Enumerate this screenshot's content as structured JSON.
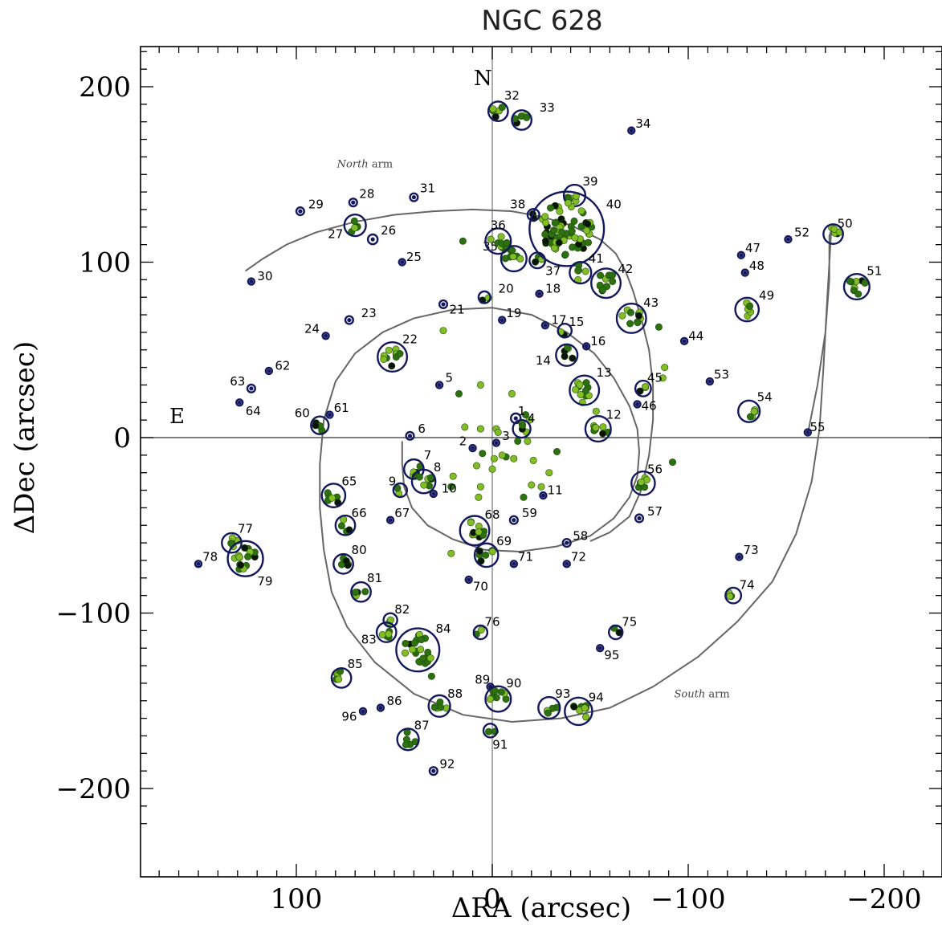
{
  "chart_data": {
    "type": "scatter",
    "title": "NGC 628",
    "xlabel": "ΔRA  (arcsec)",
    "ylabel": "ΔDec  (arcsec)",
    "xlim": [
      -228,
      178
    ],
    "ylim": [
      -230,
      223
    ],
    "x_reversed": true,
    "xticks": [
      100,
      0,
      -100,
      -200
    ],
    "xtick_labels": [
      "100",
      "0",
      "−100",
      "−200"
    ],
    "yticks": [
      200,
      100,
      0,
      -100,
      -200
    ],
    "ytick_labels": [
      "200",
      "100",
      "0",
      "−100",
      "−200"
    ],
    "compass": {
      "north": "N",
      "east": "E"
    },
    "arm_labels": [
      {
        "italic": "North",
        "rest": " arm",
        "x": 65,
        "y": 154
      },
      {
        "italic": "South",
        "rest": " arm",
        "x": -107,
        "y": -148
      }
    ],
    "colors": {
      "circle": "#14195e",
      "dark_green": "#2c7010",
      "light_green": "#82bd26",
      "curve": "#666666",
      "dark_spot": "#0a1408"
    },
    "regions": [
      {
        "id": "1",
        "x": -12,
        "y": 11,
        "r": 2.5,
        "lx": -15,
        "ly": 15
      },
      {
        "id": "2",
        "x": 10,
        "y": -6,
        "r": 1.5,
        "lx": 15,
        "ly": -2
      },
      {
        "id": "3",
        "x": -2,
        "y": -3,
        "r": 1.5,
        "lx": -7,
        "ly": 1
      },
      {
        "id": "4",
        "x": -15,
        "y": 5,
        "r": 4.5,
        "lx": -20,
        "ly": 11
      },
      {
        "id": "5",
        "x": 27,
        "y": 30,
        "r": 1.5,
        "lx": 22,
        "ly": 34
      },
      {
        "id": "6",
        "x": 42,
        "y": 1,
        "r": 2,
        "lx": 36,
        "ly": 5
      },
      {
        "id": "7",
        "x": 40,
        "y": -18,
        "r": 5,
        "lx": 33,
        "ly": -10
      },
      {
        "id": "8",
        "x": 35,
        "y": -25,
        "r": 6,
        "lx": 28,
        "ly": -17
      },
      {
        "id": "9",
        "x": 47,
        "y": -30,
        "r": 3.5,
        "lx": 51,
        "ly": -25
      },
      {
        "id": "10",
        "x": 30,
        "y": -32,
        "r": 1.5,
        "lx": 22,
        "ly": -29
      },
      {
        "id": "11",
        "x": -26,
        "y": -33,
        "r": 1.5,
        "lx": -32,
        "ly": -30
      },
      {
        "id": "12",
        "x": -54,
        "y": 5,
        "r": 6.5,
        "lx": -62,
        "ly": 13
      },
      {
        "id": "13",
        "x": -47,
        "y": 27,
        "r": 7.5,
        "lx": -57,
        "ly": 37
      },
      {
        "id": "14",
        "x": -38,
        "y": 47,
        "r": 5.5,
        "lx": -26,
        "ly": 44
      },
      {
        "id": "15",
        "x": -37,
        "y": 61,
        "r": 3.5,
        "lx": -43,
        "ly": 66
      },
      {
        "id": "16",
        "x": -48,
        "y": 52,
        "r": 1.5,
        "lx": -54,
        "ly": 55
      },
      {
        "id": "17",
        "x": -27,
        "y": 64,
        "r": 1.5,
        "lx": -34,
        "ly": 67
      },
      {
        "id": "18",
        "x": -24,
        "y": 82,
        "r": 1.5,
        "lx": -31,
        "ly": 85
      },
      {
        "id": "19",
        "x": -5,
        "y": 67,
        "r": 1.5,
        "lx": -11,
        "ly": 71
      },
      {
        "id": "20",
        "x": 4,
        "y": 80,
        "r": 3,
        "lx": -7,
        "ly": 85
      },
      {
        "id": "21",
        "x": 25,
        "y": 76,
        "r": 2,
        "lx": 18,
        "ly": 73
      },
      {
        "id": "22",
        "x": 51,
        "y": 46,
        "r": 7.5,
        "lx": 42,
        "ly": 56
      },
      {
        "id": "23",
        "x": 73,
        "y": 67,
        "r": 2,
        "lx": 63,
        "ly": 71
      },
      {
        "id": "24",
        "x": 85,
        "y": 58,
        "r": 1.5,
        "lx": 92,
        "ly": 62
      },
      {
        "id": "25",
        "x": 46,
        "y": 100,
        "r": 1.5,
        "lx": 40,
        "ly": 103
      },
      {
        "id": "26",
        "x": 61,
        "y": 113,
        "r": 2.5,
        "lx": 53,
        "ly": 118
      },
      {
        "id": "27",
        "x": 70,
        "y": 121,
        "r": 5.5,
        "lx": 80,
        "ly": 116
      },
      {
        "id": "28",
        "x": 71,
        "y": 134,
        "r": 2,
        "lx": 64,
        "ly": 139
      },
      {
        "id": "29",
        "x": 98,
        "y": 129,
        "r": 2,
        "lx": 90,
        "ly": 133
      },
      {
        "id": "30",
        "x": 123,
        "y": 89,
        "r": 1.5,
        "lx": 116,
        "ly": 92
      },
      {
        "id": "31",
        "x": 40,
        "y": 137,
        "r": 2,
        "lx": 33,
        "ly": 142
      },
      {
        "id": "32",
        "x": -3,
        "y": 186,
        "r": 5,
        "lx": -10,
        "ly": 195
      },
      {
        "id": "33",
        "x": -15,
        "y": 181,
        "r": 5,
        "lx": -28,
        "ly": 188
      },
      {
        "id": "34",
        "x": -71,
        "y": 175,
        "r": 1.5,
        "lx": -77,
        "ly": 179
      },
      {
        "id": "35",
        "x": -11,
        "y": 102,
        "r": 6.5,
        "lx": 1,
        "ly": 109
      },
      {
        "id": "36",
        "x": -3,
        "y": 112,
        "r": 6.5,
        "lx": -3,
        "ly": 121
      },
      {
        "id": "37",
        "x": -23,
        "y": 101,
        "r": 4,
        "lx": -31,
        "ly": 95
      },
      {
        "id": "38",
        "x": -21,
        "y": 127,
        "r": 3,
        "lx": -13,
        "ly": 133
      },
      {
        "id": "39",
        "x": -42,
        "y": 138,
        "r": 5.5,
        "lx": -50,
        "ly": 146
      },
      {
        "id": "40",
        "x": -38,
        "y": 119,
        "r": 19,
        "lx": -62,
        "ly": 133
      },
      {
        "id": "41",
        "x": -45,
        "y": 94,
        "r": 5.5,
        "lx": -53,
        "ly": 102
      },
      {
        "id": "42",
        "x": -58,
        "y": 88,
        "r": 7.5,
        "lx": -68,
        "ly": 96
      },
      {
        "id": "43",
        "x": -71,
        "y": 68,
        "r": 7.5,
        "lx": -81,
        "ly": 77
      },
      {
        "id": "44",
        "x": -98,
        "y": 55,
        "r": 1.5,
        "lx": -104,
        "ly": 58
      },
      {
        "id": "45",
        "x": -77,
        "y": 28,
        "r": 4,
        "lx": -83,
        "ly": 34
      },
      {
        "id": "46",
        "x": -74,
        "y": 19,
        "r": 1.5,
        "lx": -80,
        "ly": 18
      },
      {
        "id": "47",
        "x": -127,
        "y": 104,
        "r": 1.5,
        "lx": -133,
        "ly": 108
      },
      {
        "id": "48",
        "x": -129,
        "y": 94,
        "r": 1.5,
        "lx": -135,
        "ly": 98
      },
      {
        "id": "49",
        "x": -130,
        "y": 73,
        "r": 6,
        "lx": -140,
        "ly": 81
      },
      {
        "id": "50",
        "x": -174,
        "y": 116,
        "r": 5,
        "lx": -180,
        "ly": 122
      },
      {
        "id": "51",
        "x": -186,
        "y": 86,
        "r": 6.5,
        "lx": -195,
        "ly": 95
      },
      {
        "id": "52",
        "x": -151,
        "y": 113,
        "r": 1.5,
        "lx": -158,
        "ly": 117
      },
      {
        "id": "53",
        "x": -111,
        "y": 32,
        "r": 1.5,
        "lx": -117,
        "ly": 36
      },
      {
        "id": "54",
        "x": -131,
        "y": 15,
        "r": 5.5,
        "lx": -139,
        "ly": 23
      },
      {
        "id": "55",
        "x": -161,
        "y": 3,
        "r": 1.5,
        "lx": -166,
        "ly": 6
      },
      {
        "id": "56",
        "x": -77,
        "y": -26,
        "r": 6,
        "lx": -83,
        "ly": -18
      },
      {
        "id": "57",
        "x": -75,
        "y": -46,
        "r": 2,
        "lx": -83,
        "ly": -42
      },
      {
        "id": "58",
        "x": -38,
        "y": -60,
        "r": 2,
        "lx": -45,
        "ly": -56
      },
      {
        "id": "59",
        "x": -11,
        "y": -47,
        "r": 2,
        "lx": -19,
        "ly": -43
      },
      {
        "id": "60",
        "x": 88,
        "y": 7,
        "r": 4.5,
        "lx": 97,
        "ly": 14
      },
      {
        "id": "61",
        "x": 83,
        "y": 13,
        "r": 1.5,
        "lx": 77,
        "ly": 17
      },
      {
        "id": "62",
        "x": 114,
        "y": 38,
        "r": 1.5,
        "lx": 107,
        "ly": 41
      },
      {
        "id": "63",
        "x": 123,
        "y": 28,
        "r": 2,
        "lx": 130,
        "ly": 32
      },
      {
        "id": "64",
        "x": 129,
        "y": 20,
        "r": 1.5,
        "lx": 122,
        "ly": 15
      },
      {
        "id": "65",
        "x": 81,
        "y": -33,
        "r": 6,
        "lx": 73,
        "ly": -25
      },
      {
        "id": "66",
        "x": 75,
        "y": -50,
        "r": 5,
        "lx": 68,
        "ly": -43
      },
      {
        "id": "67",
        "x": 52,
        "y": -47,
        "r": 1.5,
        "lx": 46,
        "ly": -43
      },
      {
        "id": "68",
        "x": 9,
        "y": -53,
        "r": 7.5,
        "lx": 0,
        "ly": -44
      },
      {
        "id": "69",
        "x": 3,
        "y": -67,
        "r": 6,
        "lx": -6,
        "ly": -59
      },
      {
        "id": "70",
        "x": 12,
        "y": -81,
        "r": 1.5,
        "lx": 6,
        "ly": -85
      },
      {
        "id": "71",
        "x": -11,
        "y": -72,
        "r": 1.5,
        "lx": -17,
        "ly": -68
      },
      {
        "id": "72",
        "x": -38,
        "y": -72,
        "r": 1.5,
        "lx": -44,
        "ly": -68
      },
      {
        "id": "73",
        "x": -126,
        "y": -68,
        "r": 1.5,
        "lx": -132,
        "ly": -64
      },
      {
        "id": "74",
        "x": -123,
        "y": -90,
        "r": 4,
        "lx": -130,
        "ly": -84
      },
      {
        "id": "75",
        "x": -63,
        "y": -111,
        "r": 3.5,
        "lx": -70,
        "ly": -105
      },
      {
        "id": "76",
        "x": 6,
        "y": -111,
        "r": 3.5,
        "lx": 0,
        "ly": -105
      },
      {
        "id": "77",
        "x": 133,
        "y": -60,
        "r": 5,
        "lx": 126,
        "ly": -52
      },
      {
        "id": "78",
        "x": 150,
        "y": -72,
        "r": 1.5,
        "lx": 144,
        "ly": -68
      },
      {
        "id": "79",
        "x": 126,
        "y": -69,
        "r": 9,
        "lx": 116,
        "ly": -82
      },
      {
        "id": "80",
        "x": 76,
        "y": -72,
        "r": 5,
        "lx": 68,
        "ly": -64
      },
      {
        "id": "81",
        "x": 67,
        "y": -88,
        "r": 5,
        "lx": 60,
        "ly": -80
      },
      {
        "id": "82",
        "x": 52,
        "y": -104,
        "r": 3.5,
        "lx": 46,
        "ly": -98
      },
      {
        "id": "83",
        "x": 54,
        "y": -111,
        "r": 5,
        "lx": 63,
        "ly": -115
      },
      {
        "id": "84",
        "x": 38,
        "y": -121,
        "r": 11,
        "lx": 25,
        "ly": -109
      },
      {
        "id": "85",
        "x": 77,
        "y": -137,
        "r": 5,
        "lx": 70,
        "ly": -129
      },
      {
        "id": "86",
        "x": 57,
        "y": -154,
        "r": 1.5,
        "lx": 50,
        "ly": -150
      },
      {
        "id": "87",
        "x": 43,
        "y": -172,
        "r": 5.5,
        "lx": 36,
        "ly": -164
      },
      {
        "id": "88",
        "x": 27,
        "y": -153,
        "r": 5.5,
        "lx": 19,
        "ly": -146
      },
      {
        "id": "89",
        "x": 1,
        "y": -142,
        "r": 1.5,
        "lx": 5,
        "ly": -138
      },
      {
        "id": "90",
        "x": -3,
        "y": -149,
        "r": 6.5,
        "lx": -11,
        "ly": -140
      },
      {
        "id": "91",
        "x": 1,
        "y": -167,
        "r": 3.5,
        "lx": -4,
        "ly": -175
      },
      {
        "id": "92",
        "x": 30,
        "y": -190,
        "r": 2,
        "lx": 23,
        "ly": -186
      },
      {
        "id": "93",
        "x": -29,
        "y": -154,
        "r": 5.5,
        "lx": -36,
        "ly": -146
      },
      {
        "id": "94",
        "x": -44,
        "y": -156,
        "r": 7,
        "lx": -53,
        "ly": -148
      },
      {
        "id": "95",
        "x": -55,
        "y": -120,
        "r": 1.5,
        "lx": -61,
        "ly": -124
      },
      {
        "id": "96",
        "x": 66,
        "y": -156,
        "r": 1.5,
        "lx": 73,
        "ly": -159
      }
    ],
    "scattered_knots": [
      {
        "x": 15,
        "y": 112
      },
      {
        "x": 14,
        "y": 6
      },
      {
        "x": 6,
        "y": 5
      },
      {
        "x": 5,
        "y": -9
      },
      {
        "x": 8,
        "y": -16
      },
      {
        "x": -1,
        "y": -12
      },
      {
        "x": -7,
        "y": -11
      },
      {
        "x": -11,
        "y": -12
      },
      {
        "x": -21,
        "y": -13
      },
      {
        "x": -33,
        "y": -8
      },
      {
        "x": -29,
        "y": -20
      },
      {
        "x": -20,
        "y": -27
      },
      {
        "x": -16,
        "y": -34
      },
      {
        "x": 7,
        "y": -34
      },
      {
        "x": 20,
        "y": -22
      },
      {
        "x": 21,
        "y": -28
      },
      {
        "x": 25,
        "y": 61
      },
      {
        "x": 6,
        "y": 30
      },
      {
        "x": 17,
        "y": 25
      },
      {
        "x": -10,
        "y": 25
      },
      {
        "x": 21,
        "y": -66
      },
      {
        "x": 31,
        "y": -136
      },
      {
        "x": 6,
        "y": -28
      },
      {
        "x": -25,
        "y": -28
      },
      {
        "x": -85,
        "y": 63
      },
      {
        "x": -88,
        "y": 40
      },
      {
        "x": -87,
        "y": 34
      },
      {
        "x": -92,
        "y": -14
      },
      {
        "x": -2,
        "y": 5
      },
      {
        "x": -5,
        "y": -10
      },
      {
        "x": -13,
        "y": -2
      },
      {
        "x": -18,
        "y": -2
      },
      {
        "x": -19,
        "y": 10
      },
      {
        "x": -17,
        "y": 13
      },
      {
        "x": -53,
        "y": 15
      },
      {
        "x": -46,
        "y": 20
      },
      {
        "x": -59,
        "y": 3
      },
      {
        "x": 0,
        "y": -18
      },
      {
        "x": -3,
        "y": 3
      }
    ],
    "spiral_curve": [
      [
        -161,
        2
      ],
      [
        -166,
        30
      ],
      [
        -170,
        60
      ],
      [
        -172,
        90
      ],
      [
        -172,
        115
      ],
      [
        -173,
        118
      ],
      [
        -171,
        80
      ],
      [
        -169,
        40
      ],
      [
        -167,
        5
      ],
      [
        -163,
        -25
      ],
      [
        -155,
        -55
      ],
      [
        -143,
        -82
      ],
      [
        -125,
        -105
      ],
      [
        -105,
        -125
      ],
      [
        -82,
        -142
      ],
      [
        -60,
        -154
      ],
      [
        -35,
        -160
      ],
      [
        -10,
        -162
      ],
      [
        15,
        -158
      ],
      [
        40,
        -146
      ],
      [
        60,
        -128
      ],
      [
        74,
        -108
      ],
      [
        82,
        -88
      ],
      [
        86,
        -64
      ],
      [
        88,
        -40
      ],
      [
        88,
        -15
      ],
      [
        86,
        10
      ],
      [
        80,
        32
      ],
      [
        70,
        48
      ],
      [
        56,
        60
      ],
      [
        40,
        68
      ],
      [
        20,
        73
      ],
      [
        0,
        74
      ],
      [
        -20,
        70
      ],
      [
        -38,
        60
      ],
      [
        -52,
        48
      ],
      [
        -62,
        34
      ],
      [
        -70,
        18
      ],
      [
        -74,
        5
      ],
      [
        -75,
        -8
      ],
      [
        -74,
        -22
      ],
      [
        -70,
        -34
      ],
      [
        -62,
        -46
      ],
      [
        -50,
        -56
      ],
      [
        -33,
        -62
      ],
      [
        -14,
        -65
      ],
      [
        4,
        -64
      ],
      [
        20,
        -58
      ],
      [
        33,
        -50
      ],
      [
        41,
        -40
      ],
      [
        45,
        -28
      ],
      [
        46,
        -15
      ],
      [
        46,
        -2
      ]
    ],
    "north_arm_curve": [
      [
        126,
        95
      ],
      [
        117,
        102
      ],
      [
        105,
        110
      ],
      [
        90,
        117
      ],
      [
        70,
        123
      ],
      [
        50,
        127
      ],
      [
        30,
        129
      ],
      [
        10,
        130
      ],
      [
        -10,
        129
      ],
      [
        -25,
        126
      ],
      [
        -40,
        121
      ],
      [
        -55,
        113
      ],
      [
        -63,
        105
      ],
      [
        -68,
        95
      ],
      [
        -72,
        83
      ],
      [
        -76,
        68
      ],
      [
        -80,
        50
      ],
      [
        -82,
        30
      ],
      [
        -82,
        10
      ],
      [
        -80,
        -10
      ],
      [
        -76,
        -30
      ],
      [
        -70,
        -45
      ],
      [
        -60,
        -54
      ],
      [
        -50,
        -59
      ]
    ]
  }
}
